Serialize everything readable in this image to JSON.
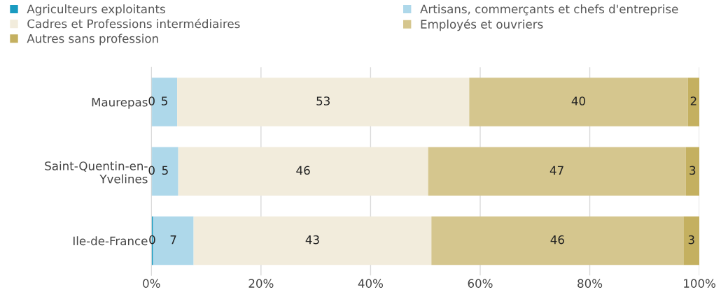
{
  "chart_data": {
    "type": "bar",
    "orientation": "horizontal",
    "stacked": true,
    "categories": [
      "Maurepas",
      "Saint-Quentin-en-\nYvelines",
      "Ile-de-France"
    ],
    "series": [
      {
        "name": "Agriculteurs exploitants",
        "color": "#1a9bc0",
        "values": [
          0.1,
          0.1,
          0.3
        ],
        "value_labels": [
          "0",
          "0",
          "0"
        ]
      },
      {
        "name": "Artisans, commerçants et chefs d'entreprise",
        "color": "#aed8ea",
        "values": [
          4.6,
          4.8,
          7.4
        ],
        "value_labels": [
          "5",
          "5",
          "7"
        ]
      },
      {
        "name": "Cadres et Professions intermédiaires",
        "color": "#f2ecdc",
        "values": [
          53.3,
          45.6,
          43.4
        ],
        "value_labels": [
          "53",
          "46",
          "43"
        ]
      },
      {
        "name": "Employés et ouvriers",
        "color": "#d5c68e",
        "values": [
          39.9,
          47.0,
          46.0
        ],
        "value_labels": [
          "40",
          "47",
          "46"
        ]
      },
      {
        "name": "Autres sans profession",
        "color": "#c4b060",
        "values": [
          2.1,
          2.5,
          2.9
        ],
        "value_labels": [
          "2",
          "3",
          "3"
        ]
      }
    ],
    "xlim": [
      0,
      100
    ],
    "xticks": [
      {
        "value": 0,
        "label": "0%"
      },
      {
        "value": 20,
        "label": "20%"
      },
      {
        "value": 40,
        "label": "40%"
      },
      {
        "value": 60,
        "label": "60%"
      },
      {
        "value": 80,
        "label": "80%"
      },
      {
        "value": 100,
        "label": "100%"
      }
    ],
    "grid": "x",
    "legend": "top"
  }
}
